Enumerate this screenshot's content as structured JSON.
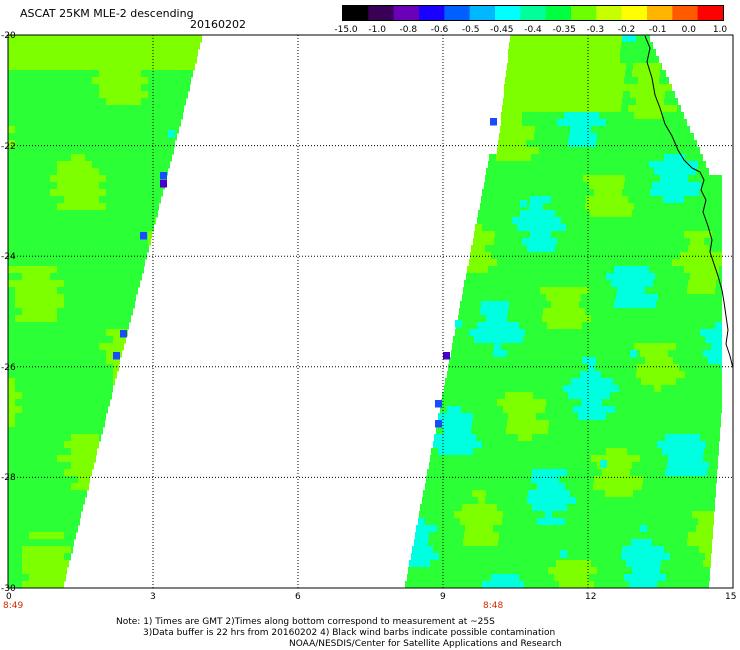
{
  "title": {
    "main": "ASCAT 25KM MLE-2 descending",
    "date": "20160202"
  },
  "colorbar": {
    "colors": [
      "#000000",
      "#3a0058",
      "#6a00b8",
      "#1a00ff",
      "#0060ff",
      "#00b8ff",
      "#00ffff",
      "#00ff9a",
      "#00ff40",
      "#6bff00",
      "#c8ff00",
      "#ffff00",
      "#ffb400",
      "#ff5a00",
      "#ff0000"
    ],
    "labels": [
      "-15.0",
      "-1.0",
      "-0.8",
      "-0.6",
      "-0.5",
      "-0.45",
      "-0.4",
      "-0.35",
      "-0.3",
      "-0.2",
      "-0.1",
      "0.0",
      "1.0"
    ]
  },
  "axes": {
    "lat_labels": [
      "-20",
      "-22",
      "-24",
      "-26",
      "-28",
      "-30"
    ],
    "lon_labels": [
      "0",
      "3",
      "6",
      "9",
      "12",
      "15"
    ],
    "lat_range": [
      -30,
      -20
    ],
    "lon_range": [
      0,
      15
    ],
    "grid": "dotted"
  },
  "times": {
    "left": "8:49",
    "right": "8:48"
  },
  "notes": {
    "line1": "Note: 1) Times are GMT 2)Times along bottom correspond to measurement at ~25S",
    "line2": "3)Data buffer is 22 hrs from 20160202 4) Black wind barbs indicate possible contamination",
    "line3": "NOAA/NESDIS/Center for Satellite Applications and Research"
  },
  "palette": {
    "lime": "#7dff00",
    "green": "#2bff35",
    "cyan": "#00ffe0",
    "blue": "#1a4bff",
    "purple": "#4a00c8",
    "coast": "#000000"
  }
}
